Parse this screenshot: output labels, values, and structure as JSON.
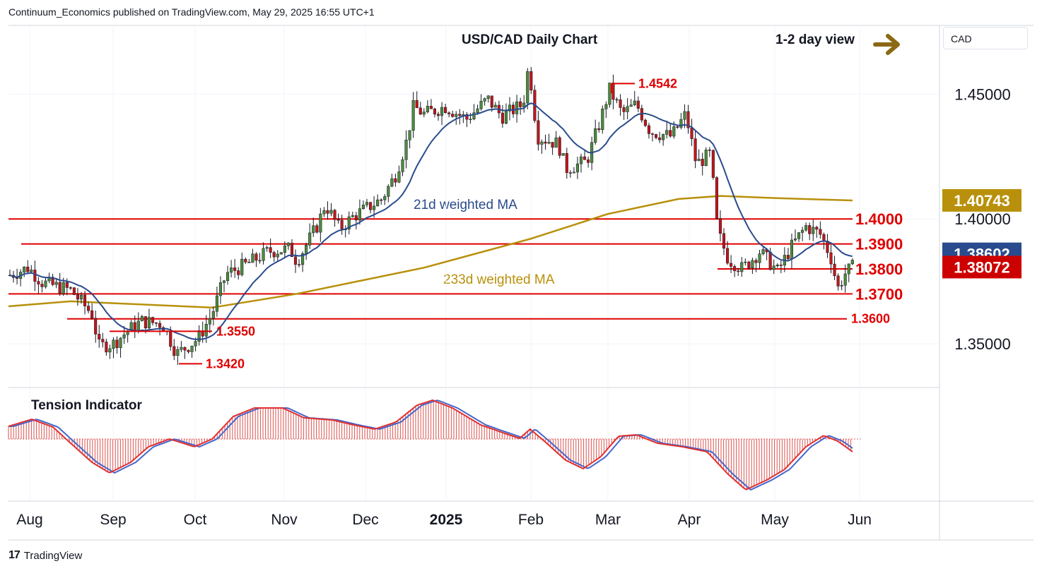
{
  "header": {
    "publisher_line": "Continuum_Economics published on TradingView.com, May 29, 2025 16:55 UTC+1"
  },
  "footer": {
    "brand": "TradingView",
    "logo_glyph": "17"
  },
  "chart_data": {
    "type": "candlestick",
    "title": "USD/CAD Daily Chart",
    "view": "1-2 day view",
    "view_arrow": "right-arrow-icon",
    "currency": "CAD",
    "ylim": [
      1.3325,
      1.4775
    ],
    "x_ticks": [
      "Aug",
      "Sep",
      "Oct",
      "Nov",
      "Dec",
      "2025",
      "Feb",
      "Mar",
      "Apr",
      "May",
      "Jun"
    ],
    "y_ticks": [
      "1.45000",
      "1.40000",
      "1.35000"
    ],
    "y_tick_values": [
      1.45,
      1.4,
      1.35
    ],
    "levels": [
      {
        "label": "1.4000",
        "value": 1.4,
        "color": "#e00000"
      },
      {
        "label": "1.3900",
        "value": 1.39,
        "color": "#e00000"
      },
      {
        "label": "1.3800",
        "value": 1.38,
        "color": "#e00000"
      },
      {
        "label": "1.3700",
        "value": 1.37,
        "color": "#e00000"
      },
      {
        "label": "1.3600",
        "value": 1.36,
        "color": "#e00000"
      }
    ],
    "annotations": [
      {
        "label": "1.4542",
        "value": 1.4542
      },
      {
        "label": "1.3550",
        "value": 1.355
      },
      {
        "label": "1.3420",
        "value": 1.342
      }
    ],
    "price_tags": [
      {
        "label": "1.40743",
        "value": 1.40743,
        "color": "#b8900b"
      },
      {
        "label": "1.38602",
        "value": 1.38602,
        "color": "#2a4b8d"
      },
      {
        "label": "1.38072",
        "value": 1.38072,
        "color": "#cc0000"
      }
    ],
    "series": [
      {
        "name": "21d weighted MA",
        "color": "#2a4b8d"
      },
      {
        "name": "233d weighted MA",
        "color": "#b8900b"
      }
    ],
    "tension_indicator": {
      "name": "Tension Indicator"
    },
    "colors": {
      "up": "#4d8a3c",
      "down": "#c0161a",
      "wick": "#131722"
    }
  }
}
